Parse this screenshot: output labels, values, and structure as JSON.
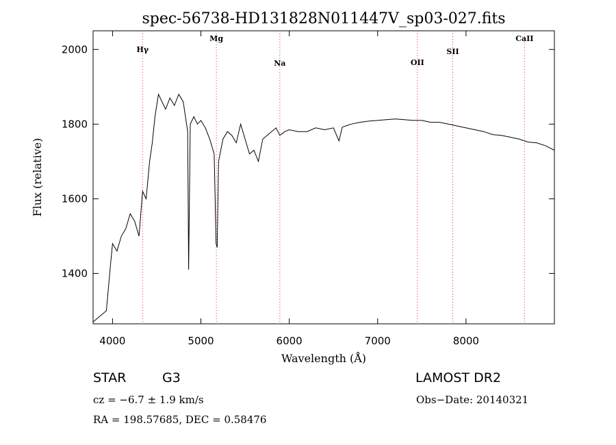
{
  "chart_data": {
    "type": "line",
    "title": "spec-56738-HD131828N011447V_sp03-027.fits",
    "xlabel": "Wavelength (Å)",
    "ylabel": "Flux (relative)",
    "xlim": [
      3780,
      9000
    ],
    "ylim": [
      1265,
      2050
    ],
    "xticks": [
      4000,
      5000,
      6000,
      7000,
      8000
    ],
    "yticks": [
      1400,
      1600,
      1800,
      2000
    ],
    "series": [
      {
        "name": "flux",
        "x": [
          3780,
          3930,
          3980,
          4000,
          4050,
          4100,
          4150,
          4200,
          4250,
          4300,
          4340,
          4380,
          4420,
          4450,
          4480,
          4520,
          4560,
          4600,
          4650,
          4700,
          4750,
          4800,
          4850,
          4861,
          4880,
          4920,
          4960,
          5000,
          5050,
          5100,
          5150,
          5172,
          5184,
          5200,
          5250,
          5300,
          5350,
          5400,
          5450,
          5500,
          5550,
          5600,
          5650,
          5700,
          5750,
          5800,
          5850,
          5893,
          5950,
          6000,
          6100,
          6200,
          6300,
          6400,
          6500,
          6563,
          6600,
          6700,
          6800,
          6900,
          7000,
          7100,
          7200,
          7300,
          7400,
          7500,
          7600,
          7700,
          7800,
          7900,
          8000,
          8100,
          8200,
          8300,
          8400,
          8500,
          8600,
          8700,
          8800,
          8900,
          9000
        ],
        "y": [
          1270,
          1300,
          1430,
          1480,
          1460,
          1500,
          1520,
          1560,
          1540,
          1500,
          1620,
          1600,
          1700,
          1750,
          1820,
          1880,
          1860,
          1840,
          1870,
          1850,
          1880,
          1860,
          1780,
          1410,
          1800,
          1820,
          1800,
          1810,
          1790,
          1760,
          1720,
          1480,
          1470,
          1700,
          1760,
          1780,
          1770,
          1750,
          1800,
          1760,
          1720,
          1730,
          1700,
          1760,
          1770,
          1780,
          1790,
          1770,
          1780,
          1785,
          1780,
          1780,
          1790,
          1785,
          1790,
          1755,
          1792,
          1800,
          1805,
          1808,
          1810,
          1812,
          1814,
          1812,
          1810,
          1810,
          1805,
          1805,
          1800,
          1795,
          1790,
          1785,
          1780,
          1772,
          1770,
          1765,
          1760,
          1752,
          1750,
          1742,
          1730
        ]
      }
    ],
    "lines": [
      {
        "label": "Hγ",
        "x": 4340
      },
      {
        "label": "Mg",
        "x": 5175
      },
      {
        "label": "Na",
        "x": 5893
      },
      {
        "label": "OII",
        "x": 7450
      },
      {
        "label": "SII",
        "x": 7850
      },
      {
        "label": "CaII",
        "x": 8662
      }
    ]
  },
  "info": {
    "class_text": "STAR",
    "subclass_text": "G3",
    "survey": "LAMOST DR2",
    "cz_text": "cz = −6.7 ± 1.9 km/s",
    "obs_date": "Obs−Date: 20140321",
    "radec_text": "RA = 198.57685, DEC =   0.58476"
  },
  "colors": {
    "line": "#000000",
    "marker": "#cc3333"
  }
}
